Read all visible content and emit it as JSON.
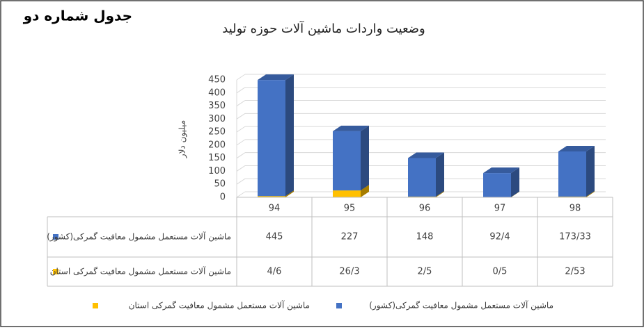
{
  "page_label": "جدول شماره دو",
  "chart_data": {
    "type": "bar3d_stacked",
    "title": "وضعیت واردات ماشین آلات حوزه تولید",
    "y_label": "میلیون دلار",
    "categories": [
      "94",
      "95",
      "96",
      "97",
      "98"
    ],
    "series": [
      {
        "name": "ماشین آلات مستعمل مشمول معافیت گمرکی(کشور)",
        "color": "#4472c4",
        "values": [
          445,
          227,
          148,
          92.4,
          173.33
        ],
        "value_labels": [
          "445",
          "227",
          "148",
          "92/4",
          "173/33"
        ]
      },
      {
        "name": "ماشین آلات مستعمل مشمول معافیت گمرکی استان",
        "color": "#ffc000",
        "values": [
          4.6,
          26.3,
          2.5,
          0.5,
          2.53
        ],
        "value_labels": [
          "4/6",
          "26/3",
          "2/5",
          "0/5",
          "2/53"
        ]
      }
    ],
    "stack_order": [
      1,
      0
    ],
    "ylim": [
      0,
      450
    ],
    "yticks": [
      0,
      50,
      100,
      150,
      200,
      250,
      300,
      350,
      400,
      450
    ],
    "grid": true,
    "legend": "bottom"
  }
}
